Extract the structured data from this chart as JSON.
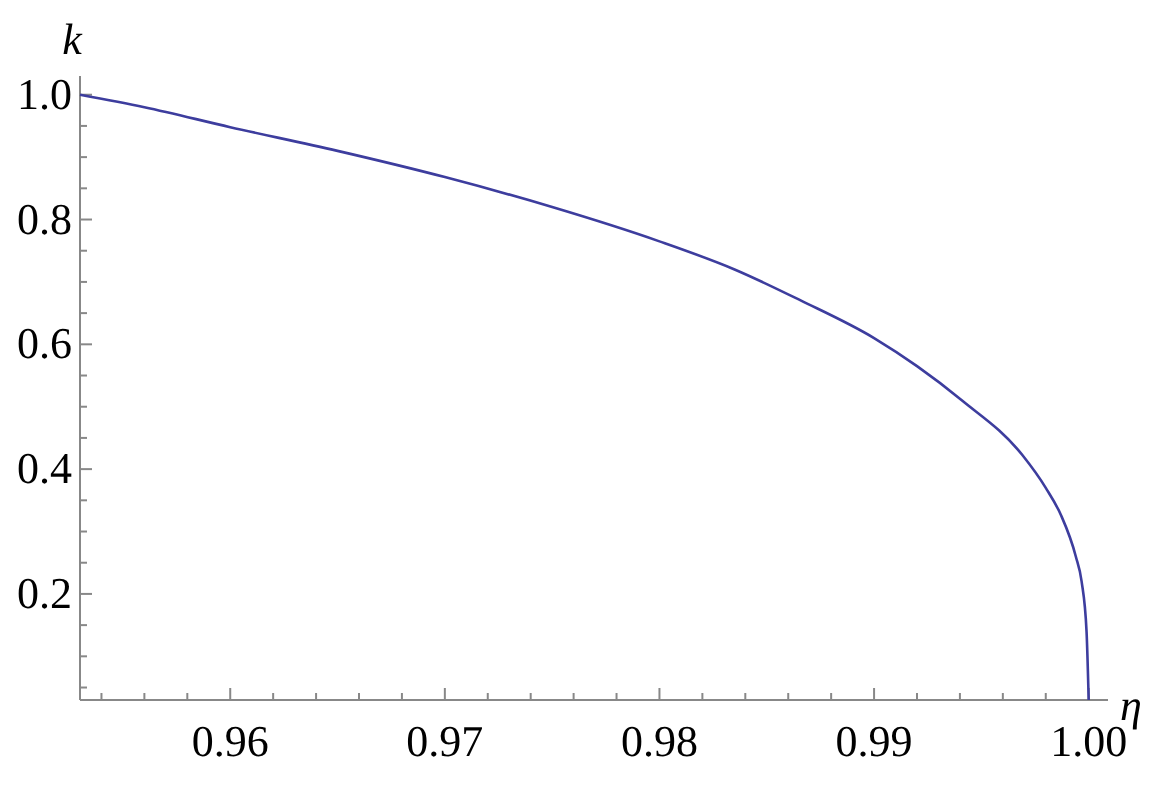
{
  "chart_data": {
    "type": "line",
    "xlabel": "η",
    "ylabel": "k",
    "xlim": [
      0.953,
      1.0009
    ],
    "ylim": [
      0.03,
      1.03
    ],
    "xticks": [
      {
        "value": 0.954,
        "label": null
      },
      {
        "value": 0.956,
        "label": null
      },
      {
        "value": 0.958,
        "label": null
      },
      0.96,
      {
        "value": 0.962,
        "label": null
      },
      {
        "value": 0.964,
        "label": null
      },
      {
        "value": 0.966,
        "label": null
      },
      {
        "value": 0.968,
        "label": null
      },
      0.97,
      {
        "value": 0.972,
        "label": null
      },
      {
        "value": 0.974,
        "label": null
      },
      {
        "value": 0.976,
        "label": null
      },
      {
        "value": 0.978,
        "label": null
      },
      0.98,
      {
        "value": 0.982,
        "label": null
      },
      {
        "value": 0.984,
        "label": null
      },
      {
        "value": 0.986,
        "label": null
      },
      {
        "value": 0.988,
        "label": null
      },
      0.99,
      {
        "value": 0.992,
        "label": null
      },
      {
        "value": 0.994,
        "label": null
      },
      {
        "value": 0.996,
        "label": null
      },
      {
        "value": 0.998,
        "label": null
      },
      {
        "value": 1.0,
        "label": "1.00"
      }
    ],
    "yticks": [
      {
        "value": 0.05,
        "label": null
      },
      {
        "value": 0.1,
        "label": null
      },
      {
        "value": 0.15,
        "label": null
      },
      0.2,
      {
        "value": 0.25,
        "label": null
      },
      {
        "value": 0.3,
        "label": null
      },
      {
        "value": 0.35,
        "label": null
      },
      0.4,
      {
        "value": 0.45,
        "label": null
      },
      {
        "value": 0.5,
        "label": null
      },
      {
        "value": 0.55,
        "label": null
      },
      0.6,
      {
        "value": 0.65,
        "label": null
      },
      {
        "value": 0.7,
        "label": null
      },
      {
        "value": 0.75,
        "label": null
      },
      0.8,
      {
        "value": 0.85,
        "label": null
      },
      {
        "value": 0.9,
        "label": null
      },
      {
        "value": 0.95,
        "label": null
      },
      {
        "value": 1.0,
        "label": "1.0"
      }
    ],
    "marker": "none",
    "line_style": "solid",
    "series": [
      {
        "color": "#3d3d9e",
        "x": [
          0.953,
          0.956,
          0.96,
          0.965,
          0.97,
          0.975,
          0.98,
          0.9835,
          0.9866,
          0.99,
          0.992,
          0.9941,
          0.9969,
          0.998,
          0.9987,
          0.9994,
          0.99967,
          0.9999,
          1.0
        ],
        "values": [
          1.0,
          0.98,
          0.948,
          0.91,
          0.868,
          0.82,
          0.765,
          0.72,
          0.67,
          0.61,
          0.565,
          0.51,
          0.423,
          0.37,
          0.327,
          0.26,
          0.22,
          0.14,
          0.03
        ]
      }
    ]
  }
}
